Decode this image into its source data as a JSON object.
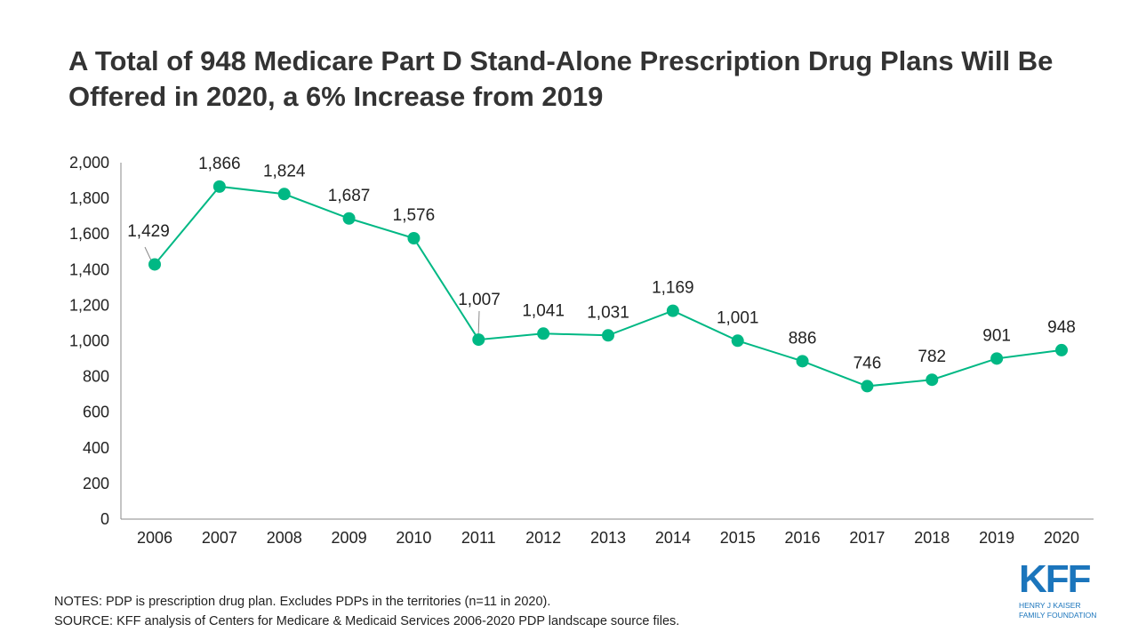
{
  "title": "A Total of 948 Medicare Part D Stand-Alone Prescription Drug Plans Will Be Offered in 2020, a 6% Increase from 2019",
  "chart_data": {
    "type": "line",
    "categories": [
      "2006",
      "2007",
      "2008",
      "2009",
      "2010",
      "2011",
      "2012",
      "2013",
      "2014",
      "2015",
      "2016",
      "2017",
      "2018",
      "2019",
      "2020"
    ],
    "values": [
      1429,
      1866,
      1824,
      1687,
      1576,
      1007,
      1041,
      1031,
      1169,
      1001,
      886,
      746,
      782,
      901,
      948
    ],
    "data_labels": [
      "1,429",
      "1,866",
      "1,824",
      "1,687",
      "1,576",
      "1,007",
      "1,041",
      "1,031",
      "1,169",
      "1,001",
      "886",
      "746",
      "782",
      "901",
      "948"
    ],
    "ylim": [
      0,
      2000
    ],
    "yticks": [
      "0",
      "200",
      "400",
      "600",
      "800",
      "1,000",
      "1,200",
      "1,400",
      "1,600",
      "1,800",
      "2,000"
    ],
    "grid": false,
    "color": "#00b884"
  },
  "notes": "NOTES: PDP is prescription drug plan. Excludes PDPs in the territories (n=11 in 2020).",
  "source": "SOURCE: KFF analysis of Centers for Medicare & Medicaid Services 2006-2020 PDP landscape source files.",
  "logo": {
    "text": "KFF",
    "line1": "HENRY J KAISER",
    "line2": "FAMILY FOUNDATION",
    "color": "#1b75bc"
  }
}
